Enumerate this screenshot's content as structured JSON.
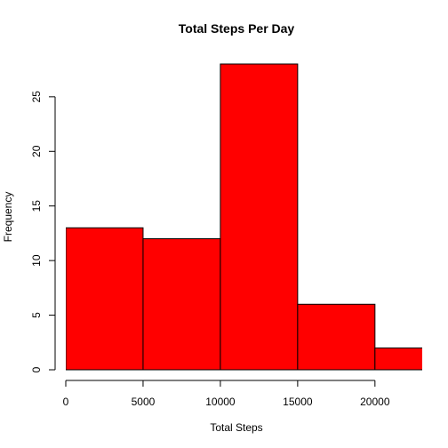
{
  "chart_data": {
    "type": "bar",
    "subtype": "histogram",
    "title": "Total Steps Per Day",
    "xlabel": "Total Steps",
    "ylabel": "Frequency",
    "bins": [
      {
        "from": 0,
        "to": 5000,
        "count": 13
      },
      {
        "from": 5000,
        "to": 10000,
        "count": 12
      },
      {
        "from": 10000,
        "to": 15000,
        "count": 28
      },
      {
        "from": 15000,
        "to": 20000,
        "count": 6
      },
      {
        "from": 20000,
        "to": 25000,
        "count": 2
      }
    ],
    "xlim": [
      0,
      23000
    ],
    "ylim": [
      0,
      28
    ],
    "xticks": [
      0,
      5000,
      10000,
      15000,
      20000
    ],
    "yticks": [
      0,
      5,
      10,
      15,
      20,
      25
    ],
    "bar_color": "#ff0000",
    "grid": false
  }
}
